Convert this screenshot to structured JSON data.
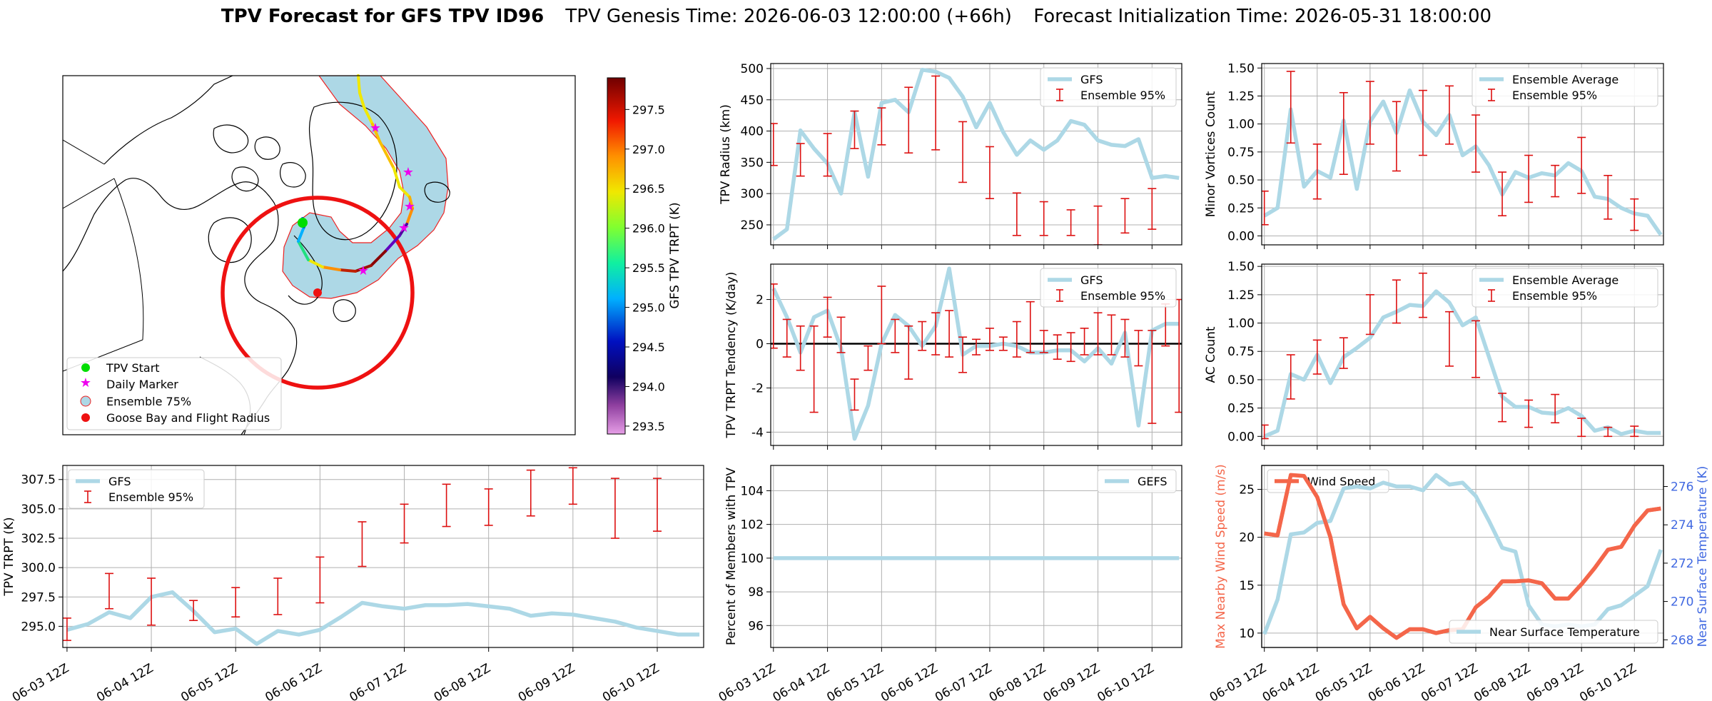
{
  "title": {
    "bold": "TPV Forecast for GFS TPV ID96",
    "genesis": "TPV Genesis Time: 2026-06-03 12:00:00 (+66h)",
    "init": "Forecast Initialization Time: 2026-05-31 18:00:00"
  },
  "colors": {
    "gfs_line": "#add8e6",
    "error_bar": "#dd1111",
    "wind_speed": "#f4664a",
    "wind_axis_label": "#f4664a",
    "temp_axis_label": "#4169e1",
    "map_radius": "#ee1111",
    "start_marker": "#00dd00",
    "daily_marker": "#ee00ee",
    "goose_bay": "#ee1111",
    "ensemble_fill": "#add8e6"
  },
  "time_ticks": [
    "06-03 12Z",
    "06-04 12Z",
    "06-05 12Z",
    "06-06 12Z",
    "06-07 12Z",
    "06-08 12Z",
    "06-09 12Z",
    "06-10 12Z"
  ],
  "map_legend": [
    "TPV Start",
    "Daily Marker",
    "Ensemble 75%",
    "Goose Bay and Flight Radius"
  ],
  "colorbar": {
    "label": "GFS TPV TRPT (K)",
    "ticks": [
      "297.5",
      "297.0",
      "296.5",
      "296.0",
      "295.5",
      "295.0",
      "294.5",
      "294.0",
      "293.5"
    ],
    "min": 293.4,
    "max": 297.9
  },
  "chart_data": [
    {
      "id": "radius",
      "type": "line",
      "ylabel": "TPV Radius (km)",
      "ylim": [
        218,
        508
      ],
      "yticks": [
        250,
        300,
        350,
        400,
        450,
        500
      ],
      "legend": [
        "GFS",
        "Ensemble 95%"
      ],
      "legend_position": "top-right",
      "x": [
        0,
        0.25,
        0.5,
        0.75,
        1,
        1.25,
        1.5,
        1.75,
        2,
        2.25,
        2.5,
        2.75,
        3,
        3.25,
        3.5,
        3.75,
        4,
        4.25,
        4.5,
        4.75,
        5,
        5.25,
        5.5,
        5.75,
        6,
        6.25,
        6.5,
        6.75,
        7,
        7.25,
        7.5
      ],
      "values": [
        227,
        243,
        401,
        372,
        348,
        300,
        430,
        327,
        445,
        450,
        430,
        498,
        495,
        485,
        455,
        406,
        445,
        398,
        362,
        385,
        370,
        385,
        416,
        410,
        385,
        378,
        376,
        387,
        325,
        328,
        325
      ],
      "errors": [
        {
          "x": 0,
          "lo": 345,
          "hi": 412
        },
        {
          "x": 0.5,
          "lo": 328,
          "hi": 380
        },
        {
          "x": 1,
          "lo": 328,
          "hi": 396
        },
        {
          "x": 1.5,
          "lo": 372,
          "hi": 432
        },
        {
          "x": 2,
          "lo": 378,
          "hi": 437
        },
        {
          "x": 2.5,
          "lo": 365,
          "hi": 470
        },
        {
          "x": 3,
          "lo": 370,
          "hi": 488
        },
        {
          "x": 3.5,
          "lo": 318,
          "hi": 415
        },
        {
          "x": 4,
          "lo": 292,
          "hi": 375
        },
        {
          "x": 4.5,
          "lo": 233,
          "hi": 301
        },
        {
          "x": 5,
          "lo": 233,
          "hi": 287
        },
        {
          "x": 5.5,
          "lo": 233,
          "hi": 274
        },
        {
          "x": 6,
          "lo": 218,
          "hi": 280
        },
        {
          "x": 6.5,
          "lo": 237,
          "hi": 292
        },
        {
          "x": 7,
          "lo": 243,
          "hi": 308
        }
      ]
    },
    {
      "id": "minor",
      "type": "line",
      "ylabel": "Minor Vortices Count",
      "ylim": [
        -0.08,
        1.54
      ],
      "yticks": [
        0.0,
        0.25,
        0.5,
        0.75,
        1.0,
        1.25,
        1.5
      ],
      "legend": [
        "Ensemble Average",
        "Ensemble 95%"
      ],
      "legend_position": "top-right",
      "x": [
        0,
        0.25,
        0.5,
        0.75,
        1,
        1.25,
        1.5,
        1.75,
        2,
        2.25,
        2.5,
        2.75,
        3,
        3.25,
        3.5,
        3.75,
        4,
        4.25,
        4.5,
        4.75,
        5,
        5.25,
        5.5,
        5.75,
        6,
        6.25,
        6.5,
        6.75,
        7,
        7.25,
        7.5
      ],
      "values": [
        0.18,
        0.25,
        1.13,
        0.44,
        0.58,
        0.52,
        1.03,
        0.42,
        1.02,
        1.2,
        0.92,
        1.3,
        1.02,
        0.9,
        1.08,
        0.72,
        0.8,
        0.63,
        0.37,
        0.57,
        0.52,
        0.56,
        0.54,
        0.65,
        0.58,
        0.35,
        0.33,
        0.25,
        0.2,
        0.18,
        0.01
      ],
      "errors": [
        {
          "x": 0,
          "lo": 0.1,
          "hi": 0.4
        },
        {
          "x": 0.5,
          "lo": 0.83,
          "hi": 1.47
        },
        {
          "x": 1,
          "lo": 0.33,
          "hi": 0.82
        },
        {
          "x": 1.5,
          "lo": 0.55,
          "hi": 1.28
        },
        {
          "x": 2,
          "lo": 0.82,
          "hi": 1.38
        },
        {
          "x": 2.5,
          "lo": 0.58,
          "hi": 1.2
        },
        {
          "x": 3,
          "lo": 0.72,
          "hi": 1.3
        },
        {
          "x": 3.5,
          "lo": 0.82,
          "hi": 1.34
        },
        {
          "x": 4,
          "lo": 0.57,
          "hi": 1.08
        },
        {
          "x": 4.5,
          "lo": 0.18,
          "hi": 0.57
        },
        {
          "x": 5,
          "lo": 0.3,
          "hi": 0.72
        },
        {
          "x": 5.5,
          "lo": 0.35,
          "hi": 0.63
        },
        {
          "x": 6,
          "lo": 0.38,
          "hi": 0.88
        },
        {
          "x": 6.5,
          "lo": 0.15,
          "hi": 0.54
        },
        {
          "x": 7,
          "lo": 0.05,
          "hi": 0.33
        }
      ]
    },
    {
      "id": "tendency",
      "type": "line",
      "ylabel": "TPV TRPT Tendency (K/day)",
      "ylim": [
        -4.6,
        3.6
      ],
      "yticks": [
        -4,
        -2,
        0,
        2
      ],
      "zero_line": true,
      "legend": [
        "GFS",
        "Ensemble 95%"
      ],
      "legend_position": "top-right",
      "x": [
        0,
        0.25,
        0.5,
        0.75,
        1,
        1.25,
        1.5,
        1.75,
        2,
        2.25,
        2.5,
        2.75,
        3,
        3.25,
        3.5,
        3.75,
        4,
        4.25,
        4.5,
        4.75,
        5,
        5.25,
        5.5,
        5.75,
        6,
        6.25,
        6.5,
        6.75,
        7,
        7.25,
        7.5
      ],
      "values": [
        2.5,
        1.2,
        -0.4,
        1.2,
        1.5,
        -0.2,
        -4.3,
        -2.8,
        0.0,
        1.3,
        0.8,
        -0.1,
        0.8,
        3.4,
        -0.5,
        -0.1,
        -0.1,
        0.0,
        -0.1,
        -0.4,
        -0.4,
        -0.3,
        -0.3,
        -0.8,
        -0.2,
        -0.9,
        0.5,
        -3.7,
        0.6,
        0.9,
        0.9
      ],
      "errors": [
        {
          "x": 0,
          "lo": -0.2,
          "hi": 2.7
        },
        {
          "x": 0.25,
          "lo": -0.6,
          "hi": 1.1
        },
        {
          "x": 0.5,
          "lo": -1.2,
          "hi": 0.8
        },
        {
          "x": 0.75,
          "lo": -3.1,
          "hi": 0.8
        },
        {
          "x": 1,
          "lo": 0.3,
          "hi": 2.1
        },
        {
          "x": 1.25,
          "lo": -0.4,
          "hi": 1.2
        },
        {
          "x": 1.5,
          "lo": -3.0,
          "hi": -1.6
        },
        {
          "x": 1.75,
          "lo": -1.2,
          "hi": -0.1
        },
        {
          "x": 2,
          "lo": 0.0,
          "hi": 2.6
        },
        {
          "x": 2.25,
          "lo": -0.4,
          "hi": 1.1
        },
        {
          "x": 2.5,
          "lo": -1.6,
          "hi": 0.8
        },
        {
          "x": 2.75,
          "lo": -0.3,
          "hi": 1.0
        },
        {
          "x": 3,
          "lo": -0.5,
          "hi": 1.4
        },
        {
          "x": 3.25,
          "lo": -0.6,
          "hi": 1.5
        },
        {
          "x": 3.5,
          "lo": -1.3,
          "hi": 0.3
        },
        {
          "x": 3.75,
          "lo": -0.5,
          "hi": 0.2
        },
        {
          "x": 4,
          "lo": -0.3,
          "hi": 0.7
        },
        {
          "x": 4.25,
          "lo": -0.3,
          "hi": 0.3
        },
        {
          "x": 4.5,
          "lo": -0.6,
          "hi": 1.0
        },
        {
          "x": 4.75,
          "lo": -0.4,
          "hi": 1.9
        },
        {
          "x": 5,
          "lo": -0.4,
          "hi": 0.6
        },
        {
          "x": 5.25,
          "lo": -0.7,
          "hi": 0.4
        },
        {
          "x": 5.5,
          "lo": -0.8,
          "hi": 0.5
        },
        {
          "x": 5.75,
          "lo": -0.5,
          "hi": 0.7
        },
        {
          "x": 6,
          "lo": -0.5,
          "hi": 1.4
        },
        {
          "x": 6.25,
          "lo": -0.5,
          "hi": 1.3
        },
        {
          "x": 6.5,
          "lo": -0.6,
          "hi": 1.1
        },
        {
          "x": 6.75,
          "lo": -1.0,
          "hi": 0.6
        },
        {
          "x": 7,
          "lo": -3.6,
          "hi": 0.6
        },
        {
          "x": 7.25,
          "lo": -0.1,
          "hi": 1.8
        },
        {
          "x": 7.5,
          "lo": -3.1,
          "hi": 2.0
        }
      ]
    },
    {
      "id": "ac",
      "type": "line",
      "ylabel": "AC Count",
      "ylim": [
        -0.08,
        1.52
      ],
      "yticks": [
        0.0,
        0.25,
        0.5,
        0.75,
        1.0,
        1.25,
        1.5
      ],
      "legend": [
        "Ensemble Average",
        "Ensemble 95%"
      ],
      "legend_position": "top-right",
      "x": [
        0,
        0.25,
        0.5,
        0.75,
        1,
        1.25,
        1.5,
        1.75,
        2,
        2.25,
        2.5,
        2.75,
        3,
        3.25,
        3.5,
        3.75,
        4,
        4.25,
        4.5,
        4.75,
        5,
        5.25,
        5.5,
        5.75,
        6,
        6.25,
        6.5,
        6.75,
        7,
        7.25,
        7.5
      ],
      "values": [
        0.0,
        0.05,
        0.55,
        0.5,
        0.72,
        0.47,
        0.7,
        0.78,
        0.87,
        1.05,
        1.1,
        1.16,
        1.15,
        1.28,
        1.18,
        0.98,
        1.05,
        0.7,
        0.35,
        0.26,
        0.26,
        0.21,
        0.2,
        0.25,
        0.18,
        0.05,
        0.08,
        0.02,
        0.05,
        0.03,
        0.03
      ],
      "errors": [
        {
          "x": 0,
          "lo": -0.02,
          "hi": 0.1
        },
        {
          "x": 0.5,
          "lo": 0.33,
          "hi": 0.72
        },
        {
          "x": 1,
          "lo": 0.55,
          "hi": 0.85
        },
        {
          "x": 1.5,
          "lo": 0.6,
          "hi": 0.87
        },
        {
          "x": 2,
          "lo": 0.9,
          "hi": 1.25
        },
        {
          "x": 2.5,
          "lo": 1.0,
          "hi": 1.38
        },
        {
          "x": 3,
          "lo": 1.05,
          "hi": 1.44
        },
        {
          "x": 3.5,
          "lo": 0.62,
          "hi": 1.1
        },
        {
          "x": 4,
          "lo": 0.52,
          "hi": 1.02
        },
        {
          "x": 4.5,
          "lo": 0.13,
          "hi": 0.38
        },
        {
          "x": 5,
          "lo": 0.08,
          "hi": 0.32
        },
        {
          "x": 5.5,
          "lo": 0.12,
          "hi": 0.37
        },
        {
          "x": 6,
          "lo": 0.0,
          "hi": 0.16
        },
        {
          "x": 6.5,
          "lo": 0.0,
          "hi": 0.08
        },
        {
          "x": 7,
          "lo": 0.0,
          "hi": 0.09
        }
      ]
    },
    {
      "id": "trpt",
      "type": "line",
      "ylabel": "TPV TRPT (K)",
      "ylim": [
        293.2,
        308.7
      ],
      "yticks": [
        295.0,
        297.5,
        300.0,
        302.5,
        305.0,
        307.5
      ],
      "legend": [
        "GFS",
        "Ensemble 95%"
      ],
      "legend_position": "top-left",
      "x": [
        0,
        0.25,
        0.5,
        0.75,
        1,
        1.25,
        1.5,
        1.75,
        2,
        2.25,
        2.5,
        2.75,
        3,
        3.25,
        3.5,
        3.75,
        4,
        4.25,
        4.5,
        4.75,
        5,
        5.25,
        5.5,
        5.75,
        6,
        6.25,
        6.5,
        6.75,
        7,
        7.25,
        7.5
      ],
      "values": [
        294.7,
        295.2,
        296.2,
        295.7,
        297.5,
        297.9,
        296.3,
        294.5,
        294.8,
        293.5,
        294.6,
        294.3,
        294.7,
        295.8,
        297.0,
        296.7,
        296.5,
        296.8,
        296.8,
        296.9,
        296.7,
        296.5,
        295.9,
        296.1,
        296.0,
        295.7,
        295.4,
        294.9,
        294.6,
        294.3,
        294.3
      ],
      "errors": [
        {
          "x": 0,
          "lo": 293.8,
          "hi": 295.7
        },
        {
          "x": 0.5,
          "lo": 296.5,
          "hi": 299.5
        },
        {
          "x": 1,
          "lo": 295.1,
          "hi": 299.1
        },
        {
          "x": 1.5,
          "lo": 295.5,
          "hi": 297.2
        },
        {
          "x": 2,
          "lo": 295.8,
          "hi": 298.3
        },
        {
          "x": 2.5,
          "lo": 296.0,
          "hi": 299.1
        },
        {
          "x": 3,
          "lo": 297.0,
          "hi": 300.9
        },
        {
          "x": 3.5,
          "lo": 300.1,
          "hi": 303.9
        },
        {
          "x": 4,
          "lo": 302.1,
          "hi": 305.4
        },
        {
          "x": 4.5,
          "lo": 303.5,
          "hi": 307.1
        },
        {
          "x": 5,
          "lo": 303.6,
          "hi": 306.7
        },
        {
          "x": 5.5,
          "lo": 304.4,
          "hi": 308.3
        },
        {
          "x": 6,
          "lo": 305.4,
          "hi": 308.5
        },
        {
          "x": 6.5,
          "lo": 302.5,
          "hi": 307.6
        },
        {
          "x": 7,
          "lo": 303.1,
          "hi": 307.6
        }
      ]
    },
    {
      "id": "percent",
      "type": "line",
      "ylabel": "Percent of Members with TPV",
      "ylim": [
        94.7,
        105.5
      ],
      "yticks": [
        96,
        98,
        100,
        102,
        104
      ],
      "legend": [
        "GEFS"
      ],
      "legend_position": "top-right",
      "x": [
        0,
        7.5
      ],
      "values": [
        100,
        100
      ]
    },
    {
      "id": "wind",
      "type": "line",
      "ylabel": "Max Nearby Wind Speed (m/s)",
      "ylim": [
        8.5,
        27.5
      ],
      "yticks": [
        10,
        15,
        20,
        25
      ],
      "legend": [
        "Wind Speed"
      ],
      "legend_position": "top-left",
      "x": [
        0,
        0.25,
        0.5,
        0.75,
        1,
        1.25,
        1.5,
        1.75,
        2,
        2.25,
        2.5,
        2.75,
        3,
        3.25,
        3.5,
        3.75,
        4,
        4.25,
        4.5,
        4.75,
        5,
        5.25,
        5.5,
        5.75,
        6,
        6.25,
        6.5,
        6.75,
        7,
        7.25,
        7.5
      ],
      "values": [
        20.4,
        20.2,
        26.5,
        26.4,
        24.2,
        20.0,
        13.0,
        10.5,
        11.7,
        10.5,
        9.5,
        10.4,
        10.4,
        10.0,
        10.3,
        10.4,
        12.7,
        13.8,
        15.4,
        15.4,
        15.5,
        15.2,
        13.6,
        13.6,
        15.1,
        16.8,
        18.7,
        19.0,
        21.2,
        22.8,
        23.0
      ]
    },
    {
      "id": "temp",
      "type": "line",
      "ylabel": "Near Surface Temperature (K)",
      "ylim": [
        267.6,
        277.1
      ],
      "yticks": [
        268,
        270,
        272,
        274,
        276
      ],
      "legend": [
        "Near Surface Temperature"
      ],
      "legend_position": "bottom-right",
      "x": [
        0,
        0.25,
        0.5,
        0.75,
        1,
        1.25,
        1.5,
        1.75,
        2,
        2.25,
        2.5,
        2.75,
        3,
        3.25,
        3.5,
        3.75,
        4,
        4.25,
        4.5,
        4.75,
        5,
        5.25,
        5.5,
        5.75,
        6,
        6.25,
        6.5,
        6.75,
        7,
        7.25,
        7.5
      ],
      "values": [
        268.3,
        270.1,
        273.5,
        273.6,
        274.1,
        274.2,
        275.9,
        276.0,
        275.9,
        276.2,
        276.0,
        276.0,
        275.8,
        276.6,
        276.1,
        276.2,
        275.5,
        274.2,
        272.8,
        272.6,
        269.8,
        268.8,
        268.7,
        268.8,
        268.7,
        268.8,
        269.6,
        269.8,
        270.3,
        270.8,
        272.7
      ]
    }
  ]
}
